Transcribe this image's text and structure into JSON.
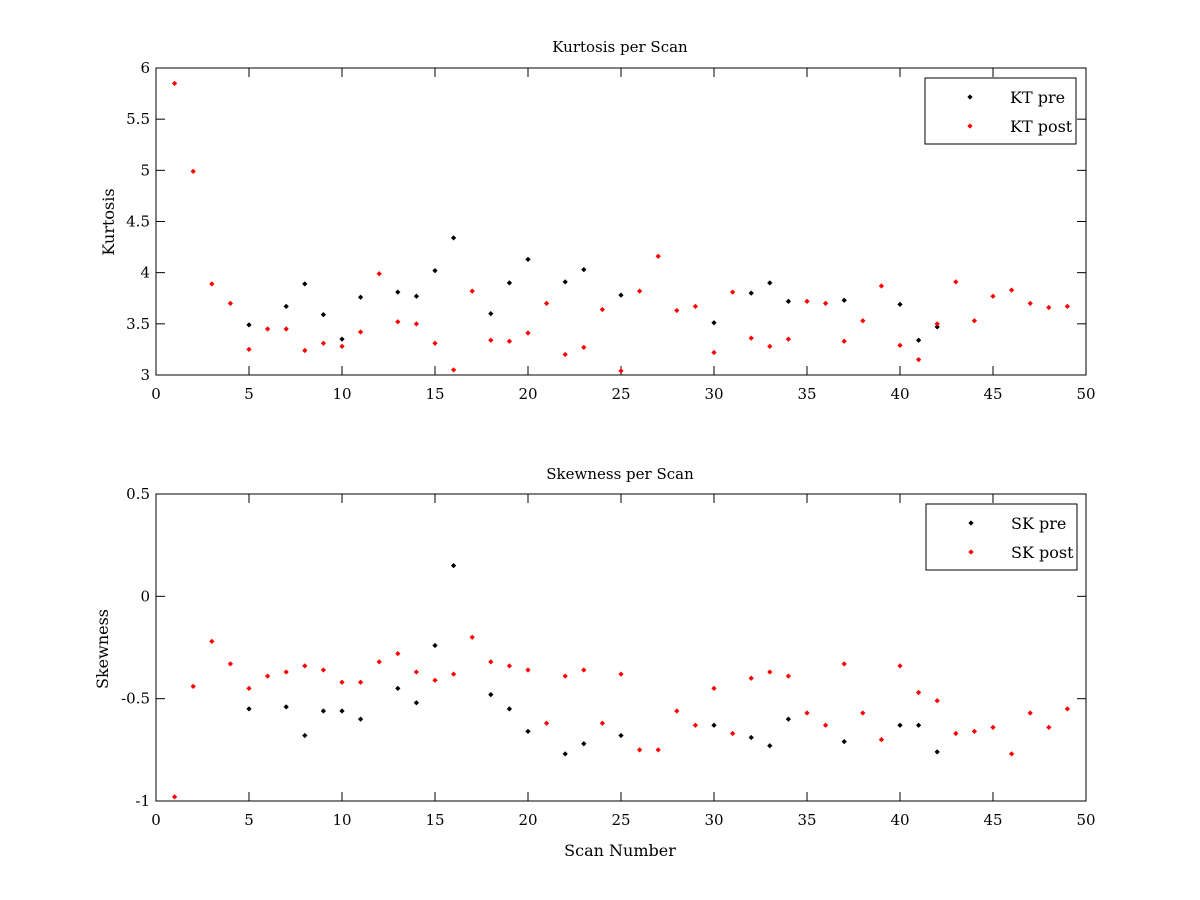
{
  "chart_data": [
    {
      "type": "scatter",
      "title": "Kurtosis per Scan",
      "xlabel": "",
      "ylabel": "Kurtosis",
      "xlim": [
        0,
        50
      ],
      "ylim": [
        3,
        6
      ],
      "xticks": [
        "0",
        "5",
        "10",
        "15",
        "20",
        "25",
        "30",
        "35",
        "40",
        "45",
        "50"
      ],
      "yticks": [
        "3",
        "3.5",
        "4",
        "4.5",
        "5",
        "5.5",
        "6"
      ],
      "legend_position": "top-right",
      "grid": false,
      "series": [
        {
          "name": "KT pre",
          "color": "#000000",
          "x": [
            5,
            7,
            8,
            9,
            10,
            11,
            13,
            14,
            15,
            16,
            18,
            19,
            20,
            22,
            23,
            25,
            30,
            32,
            33,
            34,
            37,
            40,
            41,
            42
          ],
          "y": [
            3.49,
            3.67,
            3.89,
            3.59,
            3.35,
            3.76,
            3.81,
            3.77,
            4.02,
            4.34,
            3.6,
            3.9,
            4.13,
            3.91,
            4.03,
            3.78,
            3.51,
            3.8,
            3.9,
            3.72,
            3.73,
            3.69,
            3.34,
            3.47
          ]
        },
        {
          "name": "KT post",
          "color": "#ff0000",
          "x": [
            1,
            2,
            3,
            4,
            5,
            6,
            7,
            8,
            9,
            10,
            11,
            12,
            13,
            14,
            15,
            16,
            17,
            18,
            19,
            20,
            21,
            22,
            23,
            24,
            25,
            26,
            27,
            28,
            29,
            30,
            31,
            32,
            33,
            34,
            35,
            36,
            37,
            38,
            39,
            40,
            41,
            42,
            43,
            44,
            45,
            46,
            47,
            48,
            49
          ],
          "y": [
            5.85,
            4.99,
            3.89,
            3.7,
            3.25,
            3.45,
            3.45,
            3.24,
            3.31,
            3.28,
            3.42,
            3.99,
            3.52,
            3.5,
            3.31,
            3.05,
            3.82,
            3.34,
            3.33,
            3.41,
            3.7,
            3.2,
            3.27,
            3.64,
            3.04,
            3.82,
            4.16,
            3.63,
            3.67,
            3.22,
            3.81,
            3.36,
            3.28,
            3.35,
            3.72,
            3.7,
            3.33,
            3.53,
            3.87,
            3.29,
            3.15,
            3.5,
            3.91,
            3.53,
            3.77,
            3.83,
            3.7,
            3.66,
            3.67
          ]
        }
      ]
    },
    {
      "type": "scatter",
      "title": "Skewness per Scan",
      "xlabel": "Scan Number",
      "ylabel": "Skewness",
      "xlim": [
        0,
        50
      ],
      "ylim": [
        -1,
        0.5
      ],
      "xticks": [
        "0",
        "5",
        "10",
        "15",
        "20",
        "25",
        "30",
        "35",
        "40",
        "45",
        "50"
      ],
      "yticks": [
        "-1",
        "-0.5",
        "0",
        "0.5"
      ],
      "legend_position": "top-right",
      "grid": false,
      "series": [
        {
          "name": "SK pre",
          "color": "#000000",
          "x": [
            5,
            7,
            8,
            9,
            10,
            11,
            13,
            14,
            15,
            16,
            18,
            19,
            20,
            22,
            23,
            25,
            30,
            32,
            33,
            34,
            37,
            40,
            41,
            42
          ],
          "y": [
            -0.55,
            -0.54,
            -0.68,
            -0.56,
            -0.56,
            -0.6,
            -0.45,
            -0.52,
            -0.24,
            0.15,
            -0.48,
            -0.55,
            -0.66,
            -0.77,
            -0.72,
            -0.68,
            -0.63,
            -0.69,
            -0.73,
            -0.6,
            -0.71,
            -0.63,
            -0.63,
            -0.76
          ]
        },
        {
          "name": "SK post",
          "color": "#ff0000",
          "x": [
            1,
            2,
            3,
            4,
            5,
            6,
            7,
            8,
            9,
            10,
            11,
            12,
            13,
            14,
            15,
            16,
            17,
            18,
            19,
            20,
            21,
            22,
            23,
            24,
            25,
            26,
            27,
            28,
            29,
            30,
            31,
            32,
            33,
            34,
            35,
            36,
            37,
            38,
            39,
            40,
            41,
            42,
            43,
            44,
            45,
            46,
            47,
            48,
            49
          ],
          "y": [
            -0.98,
            -0.44,
            -0.22,
            -0.33,
            -0.45,
            -0.39,
            -0.37,
            -0.34,
            -0.36,
            -0.42,
            -0.42,
            -0.32,
            -0.28,
            -0.37,
            -0.41,
            -0.38,
            -0.2,
            -0.32,
            -0.34,
            -0.36,
            -0.62,
            -0.39,
            -0.36,
            -0.62,
            -0.38,
            -0.75,
            -0.75,
            -0.56,
            -0.63,
            -0.45,
            -0.67,
            -0.4,
            -0.37,
            -0.39,
            -0.57,
            -0.63,
            -0.33,
            -0.57,
            -0.7,
            -0.34,
            -0.47,
            -0.51,
            -0.67,
            -0.66,
            -0.64,
            -0.77,
            -0.57,
            -0.64,
            -0.55
          ]
        }
      ]
    }
  ]
}
